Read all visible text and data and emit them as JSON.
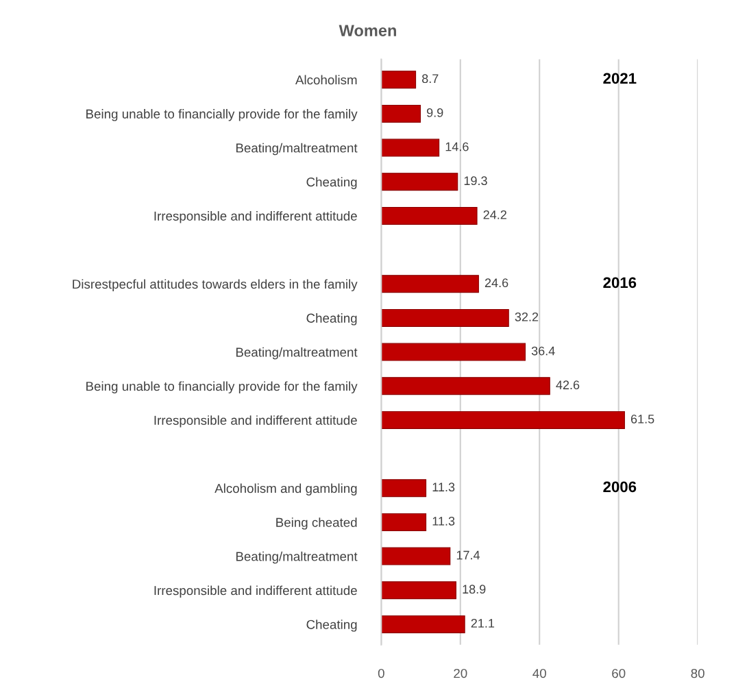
{
  "chart_data": {
    "type": "bar",
    "orientation": "horizontal",
    "title": "Women",
    "categories": [
      "Alcoholism",
      "Being unable to financially provide for the family",
      "Beating/maltreatment",
      "Cheating",
      "Irresponsible and indifferent attitude",
      null,
      "Disrestpecful attitudes towards elders in the family",
      "Cheating",
      "Beating/maltreatment",
      "Being unable to financially provide for the family",
      "Irresponsible and indifferent attitude",
      null,
      "Alcoholism and gambling",
      "Being cheated",
      "Beating/maltreatment",
      "Irresponsible and indifferent attitude",
      "Cheating"
    ],
    "values": [
      8.7,
      9.9,
      14.6,
      19.3,
      24.2,
      null,
      24.6,
      32.2,
      36.4,
      42.6,
      61.5,
      null,
      11.3,
      11.3,
      17.4,
      18.9,
      21.1
    ],
    "color": "#c00000",
    "data_labels": true,
    "xlim": [
      0,
      80
    ],
    "xticks": [
      0,
      20,
      40,
      60,
      80
    ],
    "grid": "x",
    "legend": false,
    "annotations": [
      "2021",
      "2016",
      "2006"
    ]
  }
}
